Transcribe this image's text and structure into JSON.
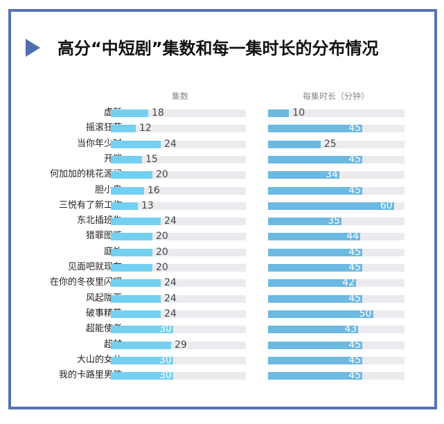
{
  "title": "高分“中短剧”集数和每一集时长的分布情况",
  "chart_data": [
    {
      "type": "bar",
      "orientation": "horizontal",
      "title": "集数",
      "categories": [
        "虚颜",
        "摇滚狂花",
        "当你年少时",
        "开端",
        "何加加的桃花源记",
        "胆小鬼",
        "三悦有了新工作",
        "东北插班生",
        "猎罪图鉴",
        "庭外",
        "见面吧就现在",
        "在你的冬夜里闪耀",
        "风起陇西",
        "破事精英",
        "超能使者",
        "超越",
        "大山的女儿",
        "我的卡路里男孩"
      ],
      "values": [
        18,
        12,
        24,
        15,
        20,
        16,
        13,
        24,
        20,
        20,
        20,
        24,
        24,
        24,
        30,
        29,
        30,
        30
      ],
      "xlim": [
        0,
        65
      ],
      "color": "#74d0f1",
      "grid": false
    },
    {
      "type": "bar",
      "orientation": "horizontal",
      "title": "每集时长（分钟）",
      "categories": [
        "虚颜",
        "摇滚狂花",
        "当你年少时",
        "开端",
        "何加加的桃花源记",
        "胆小鬼",
        "三悦有了新工作",
        "东北插班生",
        "猎罪图鉴",
        "庭外",
        "见面吧就现在",
        "在你的冬夜里闪耀",
        "风起陇西",
        "破事精英",
        "超能使者",
        "超越",
        "大山的女儿",
        "我的卡路里男孩"
      ],
      "values": [
        10,
        45,
        25,
        45,
        34,
        45,
        60,
        35,
        44,
        45,
        45,
        42,
        45,
        50,
        43,
        45,
        45,
        45
      ],
      "xlim": [
        0,
        65
      ],
      "color": "#6cb9e2",
      "grid": false
    }
  ],
  "colors": {
    "frame": "#5672b2",
    "track": "#ebebef"
  }
}
